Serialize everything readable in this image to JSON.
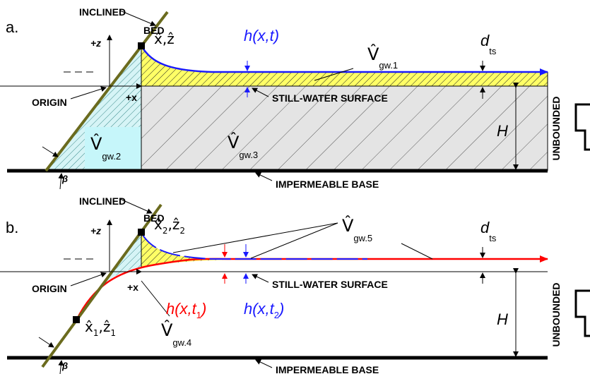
{
  "panel_a": {
    "label": "a.",
    "inclined": "INCLINED",
    "bed": "BED",
    "point": "x̂,ẑ",
    "z_axis": "+z",
    "x_axis": "+x",
    "origin": "ORIGIN",
    "h": "h(x,t)",
    "v1": {
      "symbol": "V̂",
      "sub": "gw.1"
    },
    "d": {
      "symbol": "d",
      "sub": "ts"
    },
    "still_water": "STILL-WATER SURFACE",
    "v2": {
      "symbol": "V̂",
      "sub": "gw.2"
    },
    "v3": {
      "symbol": "V̂",
      "sub": "gw.3"
    },
    "H": "H",
    "unbounded": "UNBOUNDED",
    "beta": "β",
    "base": "IMPERMEABLE BASE"
  },
  "panel_b": {
    "label": "b.",
    "inclined": "INCLINED",
    "bed": "BED",
    "point_top": {
      "x": "x̂",
      "x_sub": "2",
      "z": ",ẑ",
      "z_sub": "2"
    },
    "z_axis": "+z",
    "x_axis": "+x",
    "origin": "ORIGIN",
    "v5": {
      "symbol": "V̂",
      "sub": "gw.5"
    },
    "d": {
      "symbol": "d",
      "sub": "ts"
    },
    "still_water": "STILL-WATER SURFACE",
    "h_t1": {
      "text": "h(x,t",
      "sub": "1",
      "close": ")"
    },
    "h_t2": {
      "text": "h(x,t",
      "sub": "2",
      "close": ")"
    },
    "point_low": {
      "x": "x̂",
      "x_sub": "1",
      "z": ",ẑ",
      "z_sub": "1"
    },
    "v4": {
      "symbol": "V̂",
      "sub": "gw.4"
    },
    "H": "H",
    "unbounded": "UNBOUNDED",
    "beta": "β",
    "base": "IMPERMEABLE BASE"
  }
}
